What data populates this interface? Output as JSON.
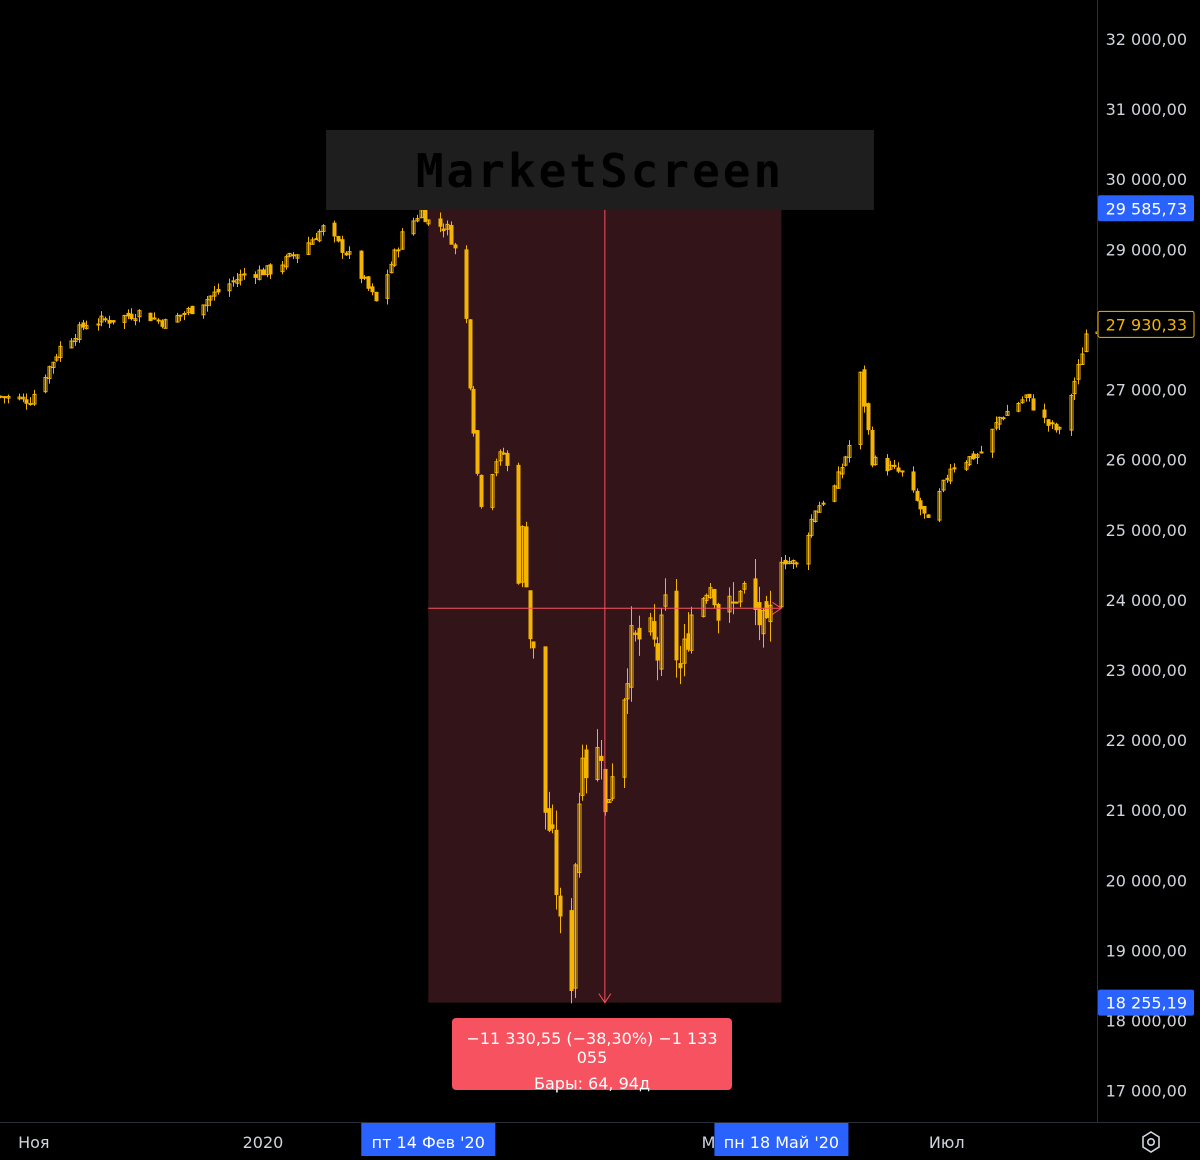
{
  "colors": {
    "background": "#000000",
    "candle": "#f5b400",
    "measure_fill": "#331418",
    "measure_line": "#f7525f",
    "measure_box": "#f7525f",
    "axis_text": "#d1d4dc",
    "axis_border": "#2a2e39",
    "tag_blue": "#2962ff",
    "tag_yellow_border": "#f5b400"
  },
  "watermark": {
    "text": "MarketScreen"
  },
  "price_axis": {
    "labels": [
      "32 000,00",
      "31 000,00",
      "30 000,00",
      "29 000,00",
      "28 000,00",
      "27 000,00",
      "26 000,00",
      "25 000,00",
      "24 000,00",
      "23 000,00",
      "22 000,00",
      "21 000,00",
      "20 000,00",
      "19 000,00",
      "18 000,00",
      "17 000,00"
    ],
    "tags": {
      "measure_high": "29 585,73",
      "last_price": "27 930,33",
      "measure_low": "18 255,19"
    }
  },
  "time_axis": {
    "labels": [
      "Ноя",
      "2020",
      "Июл"
    ],
    "hidden_partial": "М",
    "range_start": "пт 14 Фев '20",
    "range_end": "пн 18 Май '20"
  },
  "measurement": {
    "change_text": "−11 330,55 (−38,30%) −1 133 055",
    "bars_text": "Бары: 64, 94д",
    "from_price": 29585.73,
    "to_price": 18255.19,
    "change": -11330.55,
    "change_pct": -38.3,
    "bars": 64,
    "days": 94
  },
  "chart_data": {
    "type": "candlestick",
    "title": "",
    "xlabel": "",
    "ylabel": "",
    "ylim": [
      16500,
      32500
    ],
    "x_ticks": [
      "Ноя",
      "2020",
      "Июл"
    ],
    "y_ticks": [
      32000,
      31000,
      30000,
      29000,
      28000,
      27000,
      26000,
      25000,
      24000,
      23000,
      22000,
      21000,
      20000,
      19000,
      18000,
      17000
    ],
    "last_price": 27930.33,
    "grid": false,
    "x_range": [
      "2019-10-23",
      "2020-08-10"
    ],
    "close_path": [
      [
        "2019-10-23",
        26900
      ],
      [
        "2019-10-31",
        26850
      ],
      [
        "2019-11-08",
        27600
      ],
      [
        "2019-11-15",
        27950
      ],
      [
        "2019-11-22",
        28000
      ],
      [
        "2019-11-29",
        28100
      ],
      [
        "2019-12-06",
        27950
      ],
      [
        "2019-12-13",
        28150
      ],
      [
        "2019-12-20",
        28400
      ],
      [
        "2019-12-27",
        28650
      ],
      [
        "2020-01-03",
        28700
      ],
      [
        "2020-01-10",
        28950
      ],
      [
        "2020-01-17",
        29300
      ],
      [
        "2020-01-24",
        28900
      ],
      [
        "2020-01-31",
        28250
      ],
      [
        "2020-02-07",
        29200
      ],
      [
        "2020-02-12",
        29550
      ],
      [
        "2020-02-14",
        29400
      ],
      [
        "2020-02-19",
        29300
      ],
      [
        "2020-02-21",
        29000
      ],
      [
        "2020-02-24",
        28000
      ],
      [
        "2020-02-25",
        27100
      ],
      [
        "2020-02-27",
        25800
      ],
      [
        "2020-02-28",
        25400
      ],
      [
        "2020-03-03",
        26000
      ],
      [
        "2020-03-05",
        26100
      ],
      [
        "2020-03-06",
        25900
      ],
      [
        "2020-03-09",
        24300
      ],
      [
        "2020-03-10",
        25000
      ],
      [
        "2020-03-12",
        23500
      ],
      [
        "2020-03-13",
        23200
      ],
      [
        "2020-03-16",
        21000
      ],
      [
        "2020-03-18",
        20500
      ],
      [
        "2020-03-20",
        19300
      ],
      [
        "2020-03-23",
        18600
      ],
      [
        "2020-03-24",
        20300
      ],
      [
        "2020-03-26",
        22000
      ],
      [
        "2020-03-27",
        21600
      ],
      [
        "2020-03-31",
        21900
      ],
      [
        "2020-04-01",
        20900
      ],
      [
        "2020-04-06",
        22700
      ],
      [
        "2020-04-08",
        23400
      ],
      [
        "2020-04-13",
        23500
      ],
      [
        "2020-04-15",
        23200
      ],
      [
        "2020-04-17",
        23900
      ],
      [
        "2020-04-21",
        23000
      ],
      [
        "2020-04-24",
        23800
      ],
      [
        "2020-04-29",
        24200
      ],
      [
        "2020-05-01",
        23800
      ],
      [
        "2020-05-05",
        23900
      ],
      [
        "2020-05-08",
        24200
      ],
      [
        "2020-05-12",
        23700
      ],
      [
        "2020-05-14",
        23500
      ],
      [
        "2020-05-18",
        24600
      ],
      [
        "2020-05-22",
        24500
      ],
      [
        "2020-05-27",
        25300
      ],
      [
        "2020-06-01",
        25600
      ],
      [
        "2020-06-05",
        26200
      ],
      [
        "2020-06-08",
        27200
      ],
      [
        "2020-06-11",
        26000
      ],
      [
        "2020-06-15",
        25900
      ],
      [
        "2020-06-19",
        25800
      ],
      [
        "2020-06-26",
        25100
      ],
      [
        "2020-07-02",
        25900
      ],
      [
        "2020-07-10",
        26100
      ],
      [
        "2020-07-15",
        26600
      ],
      [
        "2020-07-22",
        26900
      ],
      [
        "2020-07-28",
        26500
      ],
      [
        "2020-07-31",
        26400
      ],
      [
        "2020-08-05",
        27300
      ],
      [
        "2020-08-07",
        27800
      ],
      [
        "2020-08-10",
        27900
      ]
    ]
  }
}
